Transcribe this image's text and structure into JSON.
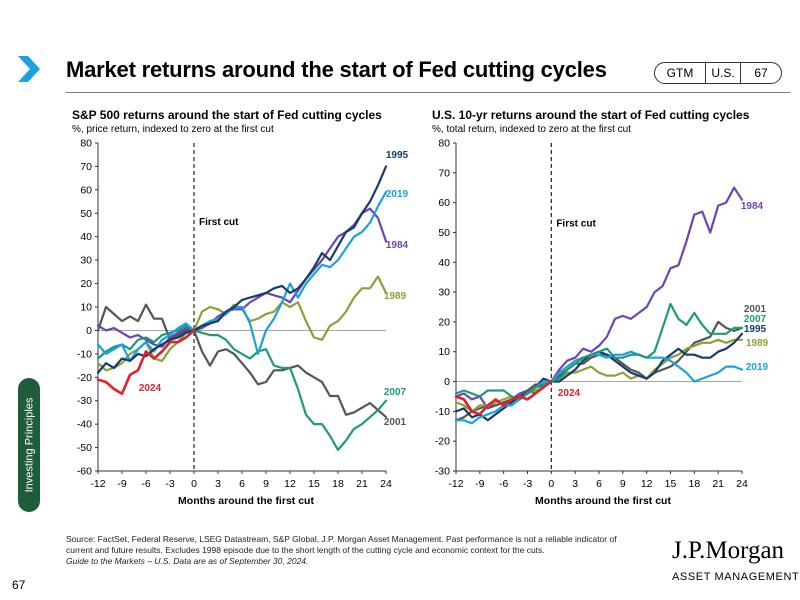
{
  "header": {
    "title": "Market returns around the start of Fed cutting cycles",
    "badge_gtm": "GTM",
    "badge_region": "U.S.",
    "badge_page": "67"
  },
  "side_tab": {
    "label": "Investing Principles"
  },
  "footer": {
    "page_number": "67",
    "source_line1": "Source: FactSet, Federal Reserve, LSEG Datastream, S&P Global, J.P. Morgan Asset Management. Past performance is not a reliable indicator of",
    "source_line2": "current and future results. Excludes 1998 episode due to the short length of the cutting cycle and economic context for the cuts.",
    "source_line3": "Guide to the Markets – U.S. Data are as of September 30, 2024.",
    "logo_main": "J.P.Morgan",
    "logo_sub": "ASSET MANAGEMENT"
  },
  "colors": {
    "1995": "#143d6b",
    "2019": "#1aa1de",
    "1984": "#6e44b5",
    "1989": "#8ba136",
    "2007": "#1d9b77",
    "2001": "#555555",
    "2024": "#e0202b",
    "axis": "#333333"
  },
  "chart_data": [
    {
      "type": "line",
      "title": "S&P 500 returns around the start of Fed cutting cycles",
      "subtitle": "%, price return, indexed to zero at the first cut",
      "xlabel": "Months around the first cut",
      "ylabel": "",
      "xlim": [
        -12,
        24
      ],
      "ylim": [
        -60,
        80
      ],
      "xticks": [
        -12,
        -9,
        -6,
        -3,
        0,
        3,
        6,
        9,
        12,
        15,
        18,
        21,
        24
      ],
      "yticks": [
        -60,
        -50,
        -40,
        -30,
        -20,
        -10,
        0,
        10,
        20,
        30,
        40,
        50,
        60,
        70,
        80
      ],
      "annotation": "First cut",
      "series": [
        {
          "name": "1995",
          "x": [
            -12,
            -11,
            -10,
            -9,
            -8,
            -7,
            -6,
            -5,
            -4,
            -3,
            -2,
            -1,
            0,
            1,
            2,
            3,
            4,
            5,
            6,
            7,
            8,
            9,
            10,
            11,
            12,
            13,
            14,
            15,
            16,
            17,
            18,
            19,
            20,
            21,
            22,
            23,
            24
          ],
          "values": [
            -18,
            -14,
            -16,
            -12,
            -13,
            -10,
            -11,
            -8,
            -6,
            -4,
            -3,
            -1,
            0,
            2,
            3,
            4,
            8,
            10,
            13,
            14,
            15,
            16,
            18,
            19,
            16,
            18,
            22,
            27,
            33,
            30,
            36,
            42,
            44,
            50,
            55,
            62,
            70
          ]
        },
        {
          "name": "2019",
          "x": [
            -12,
            -11,
            -10,
            -9,
            -8,
            -7,
            -6,
            -5,
            -4,
            -3,
            -2,
            -1,
            0,
            1,
            2,
            3,
            4,
            5,
            6,
            7,
            8,
            9,
            10,
            11,
            12,
            13,
            14,
            15,
            16,
            17,
            18,
            19,
            20,
            21,
            22,
            23,
            24
          ],
          "values": [
            -6,
            -10,
            -8,
            -6,
            -13,
            -8,
            -5,
            -9,
            -4,
            -2,
            1,
            3,
            0,
            2,
            4,
            5,
            7,
            10,
            10,
            3,
            -10,
            0,
            5,
            12,
            20,
            14,
            20,
            24,
            28,
            27,
            30,
            35,
            40,
            42,
            46,
            53,
            59
          ]
        },
        {
          "name": "1984",
          "x": [
            -12,
            -11,
            -10,
            -9,
            -8,
            -7,
            -6,
            -5,
            -4,
            -3,
            -2,
            -1,
            0,
            1,
            2,
            3,
            4,
            5,
            6,
            7,
            8,
            9,
            10,
            11,
            12,
            13,
            14,
            15,
            16,
            17,
            18,
            19,
            20,
            21,
            22,
            23,
            24
          ],
          "values": [
            2,
            0,
            1,
            -1,
            -3,
            -2,
            -4,
            -6,
            -7,
            -3,
            -1,
            1,
            0,
            1,
            3,
            6,
            8,
            9,
            9,
            12,
            14,
            16,
            15,
            14,
            12,
            17,
            22,
            26,
            30,
            35,
            40,
            42,
            45,
            50,
            52,
            48,
            38
          ]
        },
        {
          "name": "1989",
          "x": [
            -12,
            -11,
            -10,
            -9,
            -8,
            -7,
            -6,
            -5,
            -4,
            -3,
            -2,
            -1,
            0,
            1,
            2,
            3,
            4,
            5,
            6,
            7,
            8,
            9,
            10,
            11,
            12,
            13,
            14,
            15,
            16,
            17,
            18,
            19,
            20,
            21,
            22,
            23,
            24
          ],
          "values": [
            -14,
            -17,
            -16,
            -14,
            -10,
            -8,
            -5,
            -12,
            -13,
            -8,
            -5,
            -1,
            0,
            8,
            10,
            9,
            7,
            11,
            9,
            4,
            5,
            7,
            8,
            12,
            10,
            12,
            4,
            -3,
            -4,
            2,
            4,
            8,
            14,
            18,
            18,
            23,
            16
          ]
        },
        {
          "name": "2007",
          "x": [
            -12,
            -11,
            -10,
            -9,
            -8,
            -7,
            -6,
            -5,
            -4,
            -3,
            -2,
            -1,
            0,
            1,
            2,
            3,
            4,
            5,
            6,
            7,
            8,
            9,
            10,
            11,
            12,
            13,
            14,
            15,
            16,
            17,
            18,
            19,
            20,
            21,
            22,
            23,
            24
          ],
          "values": [
            -12,
            -9,
            -7,
            -6,
            -8,
            -4,
            -3,
            -5,
            -2,
            -1,
            0,
            2,
            0,
            -1,
            -2,
            -2,
            -4,
            -8,
            -10,
            -12,
            -9,
            -8,
            -15,
            -16,
            -16,
            -25,
            -36,
            -40,
            -40,
            -45,
            -51,
            -47,
            -42,
            -40,
            -37,
            -34,
            -30
          ]
        },
        {
          "name": "2001",
          "x": [
            -12,
            -11,
            -10,
            -9,
            -8,
            -7,
            -6,
            -5,
            -4,
            -3,
            -2,
            -1,
            0,
            1,
            2,
            3,
            4,
            5,
            6,
            7,
            8,
            9,
            10,
            11,
            12,
            13,
            14,
            15,
            16,
            17,
            18,
            19,
            20,
            21,
            22,
            23,
            24
          ],
          "values": [
            0,
            10,
            7,
            4,
            6,
            4,
            11,
            5,
            5,
            -4,
            -2,
            0,
            0,
            -9,
            -15,
            -9,
            -8,
            -10,
            -14,
            -18,
            -23,
            -22,
            -17,
            -17,
            -16,
            -15,
            -18,
            -20,
            -22,
            -28,
            -28,
            -36,
            -35,
            -33,
            -31,
            -34,
            -37
          ]
        },
        {
          "name": "2024",
          "x": [
            -12,
            -11,
            -10,
            -9,
            -8,
            -7,
            -6,
            -5,
            -4,
            -3,
            -2,
            -1,
            0
          ],
          "values": [
            -21,
            -22,
            -25,
            -27,
            -19,
            -17,
            -9,
            -12,
            -9,
            -5,
            -5,
            -3,
            0
          ]
        }
      ]
    },
    {
      "type": "line",
      "title": "U.S. 10-yr returns around the start of Fed cutting cycles",
      "subtitle": "%, total return, indexed to zero at the first cut",
      "xlabel": "Months around the first cut",
      "ylabel": "",
      "xlim": [
        -12,
        24
      ],
      "ylim": [
        -30,
        80
      ],
      "xticks": [
        -12,
        -9,
        -6,
        -3,
        0,
        3,
        6,
        9,
        12,
        15,
        18,
        21,
        24
      ],
      "yticks": [
        -30,
        -20,
        -10,
        0,
        10,
        20,
        30,
        40,
        50,
        60,
        70,
        80
      ],
      "annotation": "First cut",
      "series": [
        {
          "name": "1984",
          "x": [
            -12,
            -11,
            -10,
            -9,
            -8,
            -7,
            -6,
            -5,
            -4,
            -3,
            -2,
            -1,
            0,
            1,
            2,
            3,
            4,
            5,
            6,
            7,
            8,
            9,
            10,
            11,
            12,
            13,
            14,
            15,
            16,
            17,
            18,
            19,
            20,
            21,
            22,
            23,
            24
          ],
          "values": [
            -5,
            -4,
            -6,
            -5,
            -9,
            -8,
            -7,
            -6,
            -4,
            -3,
            -4,
            -1,
            0,
            4,
            7,
            8,
            11,
            10,
            12,
            15,
            21,
            22,
            21,
            23,
            25,
            30,
            32,
            38,
            39,
            47,
            56,
            57,
            50,
            59,
            60,
            65,
            61
          ]
        },
        {
          "name": "2001",
          "x": [
            -12,
            -11,
            -10,
            -9,
            -8,
            -7,
            -6,
            -5,
            -4,
            -3,
            -2,
            -1,
            0,
            1,
            2,
            3,
            4,
            5,
            6,
            7,
            8,
            9,
            10,
            11,
            12,
            13,
            14,
            15,
            16,
            17,
            18,
            19,
            20,
            21,
            22,
            23,
            24
          ],
          "values": [
            -13,
            -12,
            -10,
            -9,
            -8,
            -8,
            -7,
            -6,
            -5,
            -3,
            -1,
            -1,
            0,
            2,
            4,
            6,
            6,
            8,
            9,
            9,
            8,
            6,
            4,
            3,
            1,
            3,
            4,
            5,
            7,
            10,
            13,
            14,
            15,
            20,
            18,
            17,
            18
          ]
        },
        {
          "name": "2007",
          "x": [
            -12,
            -11,
            -10,
            -9,
            -8,
            -7,
            -6,
            -5,
            -4,
            -3,
            -2,
            -1,
            0,
            1,
            2,
            3,
            4,
            5,
            6,
            7,
            8,
            9,
            10,
            11,
            12,
            13,
            14,
            15,
            16,
            17,
            18,
            19,
            20,
            21,
            22,
            23,
            24
          ],
          "values": [
            -4,
            -3,
            -4,
            -5,
            -3,
            -3,
            -3,
            -5,
            -6,
            -4,
            -2,
            -1,
            0,
            1,
            4,
            6,
            8,
            9,
            10,
            11,
            8,
            8,
            9,
            9,
            8,
            10,
            18,
            26,
            21,
            19,
            23,
            19,
            16,
            16,
            16,
            18,
            18
          ]
        },
        {
          "name": "1995",
          "x": [
            -12,
            -11,
            -10,
            -9,
            -8,
            -7,
            -6,
            -5,
            -4,
            -3,
            -2,
            -1,
            0,
            1,
            2,
            3,
            4,
            5,
            6,
            7,
            8,
            9,
            10,
            11,
            12,
            13,
            14,
            15,
            16,
            17,
            18,
            19,
            20,
            21,
            22,
            23,
            24
          ],
          "values": [
            -10,
            -9,
            -12,
            -11,
            -13,
            -11,
            -9,
            -7,
            -5,
            -4,
            -2,
            1,
            0,
            0,
            2,
            4,
            7,
            9,
            10,
            9,
            7,
            5,
            3,
            2,
            1,
            3,
            7,
            9,
            11,
            9,
            9,
            8,
            8,
            10,
            11,
            13,
            16
          ]
        },
        {
          "name": "1989",
          "x": [
            -12,
            -11,
            -10,
            -9,
            -8,
            -7,
            -6,
            -5,
            -4,
            -3,
            -2,
            -1,
            0,
            1,
            2,
            3,
            4,
            5,
            6,
            7,
            8,
            9,
            10,
            11,
            12,
            13,
            14,
            15,
            16,
            17,
            18,
            19,
            20,
            21,
            22,
            23,
            24
          ],
          "values": [
            -7,
            -8,
            -10,
            -8,
            -8,
            -7,
            -6,
            -5,
            -6,
            -4,
            -3,
            -2,
            0,
            1,
            3,
            3,
            4,
            5,
            3,
            2,
            2,
            3,
            1,
            2,
            1,
            4,
            6,
            8,
            9,
            11,
            12,
            13,
            13,
            14,
            13,
            14,
            14
          ]
        },
        {
          "name": "2019",
          "x": [
            -12,
            -11,
            -10,
            -9,
            -8,
            -7,
            -6,
            -5,
            -4,
            -3,
            -2,
            -1,
            0,
            1,
            2,
            3,
            4,
            5,
            6,
            7,
            8,
            9,
            10,
            11,
            12,
            13,
            14,
            15,
            16,
            17,
            18,
            19,
            20,
            21,
            22,
            23,
            24
          ],
          "values": [
            -13,
            -13,
            -14,
            -12,
            -11,
            -10,
            -8,
            -8,
            -6,
            -4,
            -2,
            0,
            0,
            3,
            5,
            7,
            8,
            9,
            9,
            8,
            9,
            9,
            10,
            9,
            8,
            8,
            8,
            7,
            5,
            3,
            0,
            1,
            2,
            3,
            5,
            5,
            4
          ]
        },
        {
          "name": "2024",
          "x": [
            -12,
            -11,
            -10,
            -9,
            -8,
            -7,
            -6,
            -5,
            -4,
            -3,
            -2,
            -1,
            0
          ],
          "values": [
            -5,
            -6,
            -10,
            -11,
            -8,
            -6,
            -8,
            -6,
            -5,
            -6,
            -4,
            -2,
            0
          ]
        }
      ]
    }
  ]
}
